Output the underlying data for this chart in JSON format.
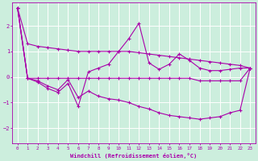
{
  "xlabel": "Windchill (Refroidissement éolien,°C)",
  "background_color": "#cceedd",
  "grid_color": "#ffffff",
  "line_color": "#aa00aa",
  "xlim": [
    -0.5,
    23.5
  ],
  "ylim": [
    -2.6,
    2.9
  ],
  "yticks": [
    -2,
    -1,
    0,
    1,
    2
  ],
  "xticks": [
    0,
    1,
    2,
    3,
    4,
    5,
    6,
    7,
    8,
    9,
    10,
    11,
    12,
    13,
    14,
    15,
    16,
    17,
    18,
    19,
    20,
    21,
    22,
    23
  ],
  "series": [
    {
      "x": [
        0,
        1,
        2,
        3,
        4,
        5,
        6,
        7,
        8,
        9,
        10,
        11,
        12,
        13,
        14,
        15,
        16,
        17,
        18,
        19,
        20,
        21,
        22,
        23
      ],
      "y": [
        2.7,
        1.3,
        1.2,
        1.15,
        1.1,
        1.05,
        1.0,
        1.0,
        1.0,
        1.0,
        1.0,
        1.0,
        0.95,
        0.9,
        0.85,
        0.8,
        0.75,
        0.7,
        0.65,
        0.6,
        0.55,
        0.5,
        0.45,
        0.35
      ]
    },
    {
      "x": [
        0,
        1,
        2,
        3,
        4,
        5,
        6,
        7,
        8,
        9,
        10,
        11,
        12,
        13,
        14,
        15,
        16,
        17,
        18,
        19,
        20,
        21,
        22,
        23
      ],
      "y": [
        2.7,
        -0.05,
        -0.2,
        -0.45,
        -0.6,
        -0.25,
        -1.15,
        0.2,
        0.35,
        0.5,
        1.0,
        1.5,
        2.1,
        0.55,
        0.3,
        0.5,
        0.9,
        0.65,
        0.35,
        0.25,
        0.25,
        0.3,
        0.35,
        0.35
      ]
    },
    {
      "x": [
        0,
        1,
        2,
        3,
        4,
        5,
        6,
        7,
        8,
        9,
        10,
        11,
        12,
        13,
        14,
        15,
        16,
        17,
        18,
        19,
        20,
        21,
        22,
        23
      ],
      "y": [
        2.7,
        -0.05,
        -0.15,
        -0.35,
        -0.5,
        -0.1,
        -0.8,
        -0.55,
        -0.75,
        -0.85,
        -0.9,
        -1.0,
        -1.15,
        -1.25,
        -1.4,
        -1.5,
        -1.55,
        -1.6,
        -1.65,
        -1.6,
        -1.55,
        -1.4,
        -1.3,
        0.35
      ]
    },
    {
      "x": [
        0,
        1,
        2,
        3,
        4,
        5,
        6,
        7,
        8,
        9,
        10,
        11,
        12,
        13,
        14,
        15,
        16,
        17,
        18,
        19,
        20,
        21,
        22,
        23
      ],
      "y": [
        2.7,
        -0.05,
        -0.05,
        -0.05,
        -0.05,
        -0.05,
        -0.05,
        -0.05,
        -0.05,
        -0.05,
        -0.05,
        -0.05,
        -0.05,
        -0.05,
        -0.05,
        -0.05,
        -0.05,
        -0.05,
        -0.15,
        -0.15,
        -0.15,
        -0.15,
        -0.15,
        0.35
      ]
    }
  ]
}
